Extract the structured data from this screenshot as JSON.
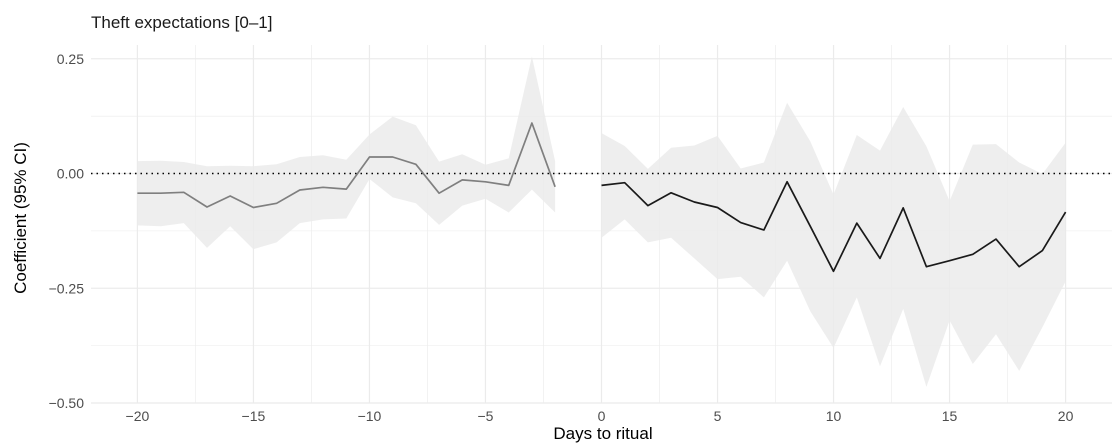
{
  "chart_data": {
    "type": "line",
    "title": "Theft expectations [0–1]",
    "xlabel": "Days to ritual",
    "ylabel": "Coefficient (95% CI)",
    "xlim": [
      -22,
      22
    ],
    "ylim": [
      -0.5,
      0.28
    ],
    "x_ticks": [
      -20,
      -15,
      -10,
      -5,
      0,
      5,
      10,
      15,
      20
    ],
    "x_tick_labels": [
      "−20",
      "−15",
      "−10",
      "−5",
      "0",
      "5",
      "10",
      "15",
      "20"
    ],
    "y_ticks": [
      -0.5,
      -0.25,
      0,
      0.25
    ],
    "y_tick_labels": [
      "−0.50",
      "−0.25",
      "0.00",
      "0.25"
    ],
    "reference_line": {
      "y": 0,
      "style": "dotted"
    },
    "grid": true,
    "colors": {
      "pre": "#7f7f7f",
      "post": "#1a1a1a",
      "ribbon": "#ebebeb",
      "grid": "#ebebeb"
    },
    "series": [
      {
        "color": "#7f7f7f",
        "x": [
          -20,
          -19,
          -18,
          -17,
          -16,
          -15,
          -14,
          -13,
          -12,
          -11,
          -10,
          -9,
          -8,
          -7,
          -6,
          -5,
          -4,
          -3,
          -2
        ],
        "y": [
          -0.043,
          -0.043,
          -0.041,
          -0.073,
          -0.049,
          -0.074,
          -0.065,
          -0.036,
          -0.03,
          -0.034,
          0.036,
          0.036,
          0.02,
          -0.043,
          -0.014,
          -0.018,
          -0.026,
          0.11,
          -0.029
        ],
        "lower": [
          -0.113,
          -0.115,
          -0.108,
          -0.162,
          -0.115,
          -0.165,
          -0.15,
          -0.108,
          -0.1,
          -0.098,
          -0.012,
          -0.052,
          -0.065,
          -0.112,
          -0.07,
          -0.055,
          -0.085,
          -0.035,
          -0.085
        ],
        "upper": [
          0.027,
          0.028,
          0.025,
          0.016,
          0.017,
          0.016,
          0.02,
          0.036,
          0.04,
          0.03,
          0.085,
          0.124,
          0.105,
          0.026,
          0.042,
          0.019,
          0.033,
          0.255,
          0.027
        ]
      },
      {
        "color": "#1a1a1a",
        "x": [
          0,
          1,
          2,
          3,
          4,
          5,
          6,
          7,
          8,
          9,
          10,
          11,
          12,
          13,
          14,
          15,
          16,
          17,
          18,
          19,
          20
        ],
        "y": [
          -0.026,
          -0.02,
          -0.07,
          -0.042,
          -0.062,
          -0.074,
          -0.107,
          -0.123,
          -0.018,
          -0.115,
          -0.213,
          -0.108,
          -0.185,
          -0.075,
          -0.203,
          -0.19,
          -0.176,
          -0.143,
          -0.203,
          -0.168,
          -0.084
        ],
        "lower": [
          -0.14,
          -0.1,
          -0.15,
          -0.14,
          -0.185,
          -0.23,
          -0.225,
          -0.27,
          -0.19,
          -0.3,
          -0.38,
          -0.27,
          -0.42,
          -0.295,
          -0.465,
          -0.32,
          -0.415,
          -0.35,
          -0.43,
          -0.335,
          -0.235
        ],
        "upper": [
          0.088,
          0.06,
          0.01,
          0.056,
          0.061,
          0.082,
          0.011,
          0.024,
          0.154,
          0.07,
          -0.046,
          0.084,
          0.05,
          0.145,
          0.059,
          -0.06,
          0.063,
          0.064,
          0.024,
          -0.001,
          0.067
        ]
      }
    ]
  }
}
